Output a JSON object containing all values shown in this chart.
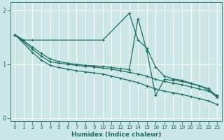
{
  "xlabel": "Humidex (Indice chaleur)",
  "ylabel": "",
  "background_color": "#cce8e5",
  "grid_color": "#ffffff",
  "line_color": "#1e6e62",
  "xlim": [
    -0.5,
    23.5
  ],
  "ylim": [
    -0.05,
    2.15
  ],
  "xticks": [
    0,
    1,
    2,
    3,
    4,
    5,
    6,
    7,
    8,
    9,
    10,
    11,
    12,
    13,
    14,
    15,
    16,
    17,
    18,
    19,
    20,
    21,
    22,
    23
  ],
  "yticks": [
    0,
    1,
    2
  ],
  "lines": [
    {
      "x": [
        0,
        1,
        2,
        10,
        13,
        14,
        15,
        16,
        17,
        18,
        19,
        20,
        21,
        22,
        23
      ],
      "y": [
        1.55,
        1.45,
        1.45,
        1.45,
        1.95,
        1.45,
        1.3,
        0.95,
        0.78,
        0.73,
        0.7,
        0.65,
        0.6,
        0.52,
        0.38
      ]
    },
    {
      "x": [
        0,
        2,
        3,
        4,
        5,
        6,
        7,
        8,
        9,
        10,
        11,
        12,
        13,
        14,
        15,
        16,
        17,
        18,
        19,
        20,
        21,
        22,
        23
      ],
      "y": [
        1.55,
        1.32,
        1.2,
        1.1,
        1.05,
        1.02,
        1.0,
        0.98,
        0.97,
        0.96,
        0.94,
        0.92,
        0.9,
        1.85,
        1.25,
        0.42,
        0.72,
        0.7,
        0.68,
        0.64,
        0.6,
        0.55,
        0.4
      ]
    },
    {
      "x": [
        0,
        2,
        3,
        4,
        5,
        6,
        7,
        8,
        9,
        10,
        11,
        12,
        13,
        14,
        15,
        16,
        17,
        18,
        19,
        20,
        21,
        22,
        23
      ],
      "y": [
        1.55,
        1.28,
        1.15,
        1.05,
        1.02,
        1.0,
        0.98,
        0.96,
        0.95,
        0.93,
        0.91,
        0.88,
        0.85,
        0.82,
        0.78,
        0.72,
        0.68,
        0.65,
        0.62,
        0.58,
        0.54,
        0.5,
        0.42
      ]
    },
    {
      "x": [
        0,
        2,
        3,
        4,
        5,
        6,
        7,
        8,
        9,
        10,
        11,
        12,
        13,
        14,
        15,
        16,
        17,
        18,
        19,
        20,
        21,
        22,
        23
      ],
      "y": [
        1.55,
        1.22,
        1.08,
        0.98,
        0.94,
        0.91,
        0.88,
        0.86,
        0.84,
        0.82,
        0.78,
        0.74,
        0.7,
        0.66,
        0.6,
        0.54,
        0.5,
        0.47,
        0.44,
        0.4,
        0.36,
        0.32,
        0.25
      ]
    }
  ]
}
